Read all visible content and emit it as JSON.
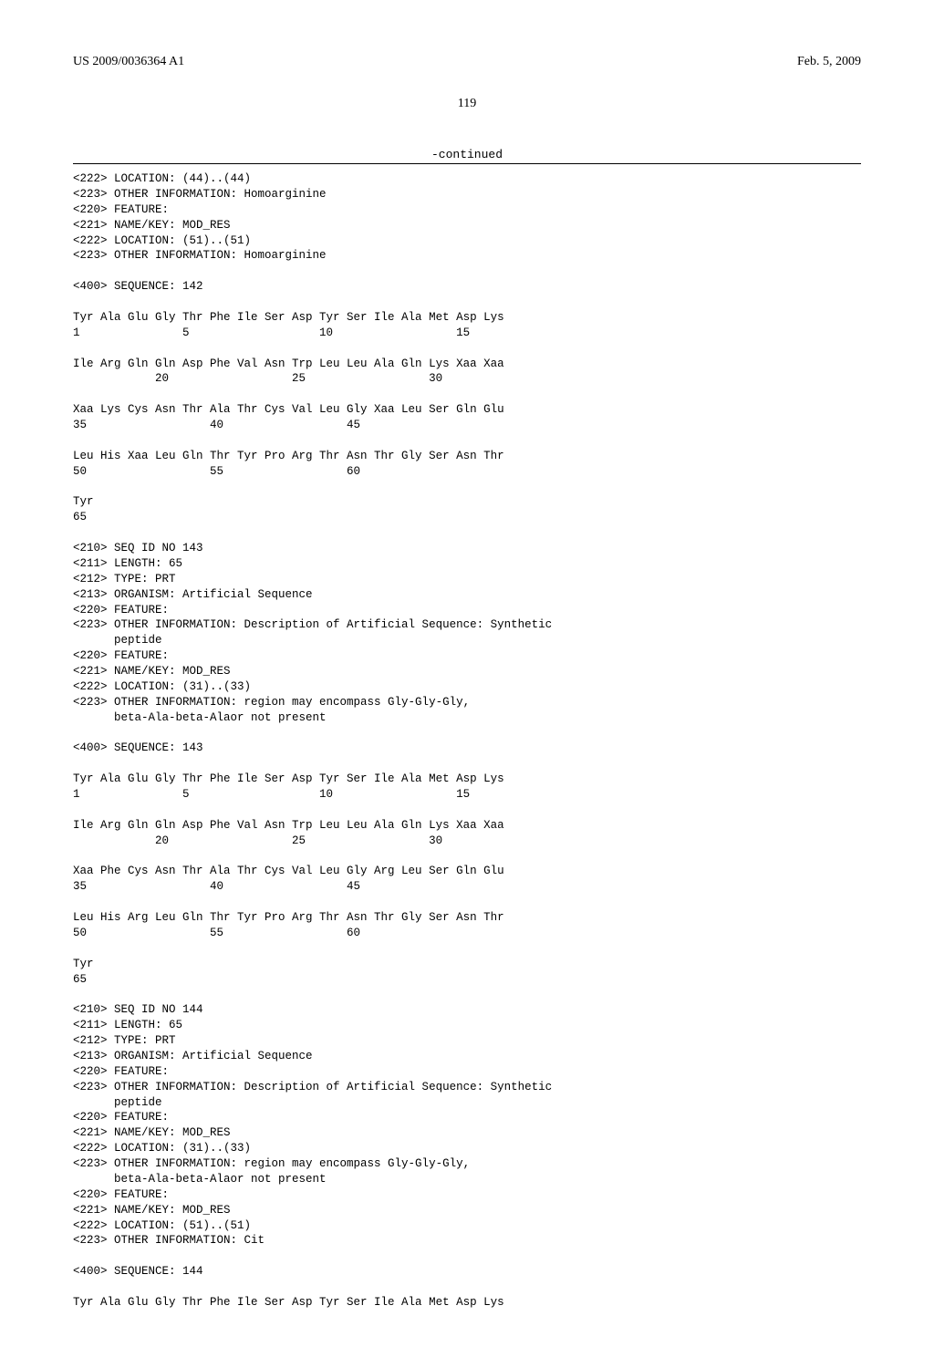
{
  "header": {
    "left": "US 2009/0036364 A1",
    "right": "Feb. 5, 2009"
  },
  "page_number": "119",
  "continued": "-continued",
  "seq142": {
    "meta": "<222> LOCATION: (44)..(44)\n<223> OTHER INFORMATION: Homoarginine\n<220> FEATURE:\n<221> NAME/KEY: MOD_RES\n<222> LOCATION: (51)..(51)\n<223> OTHER INFORMATION: Homoarginine\n\n<400> SEQUENCE: 142\n\nTyr Ala Glu Gly Thr Phe Ile Ser Asp Tyr Ser Ile Ala Met Asp Lys\n1               5                   10                  15\n\nIle Arg Gln Gln Asp Phe Val Asn Trp Leu Leu Ala Gln Lys Xaa Xaa\n            20                  25                  30\n\nXaa Lys Cys Asn Thr Ala Thr Cys Val Leu Gly Xaa Leu Ser Gln Glu\n35                  40                  45\n\nLeu His Xaa Leu Gln Thr Tyr Pro Arg Thr Asn Thr Gly Ser Asn Thr\n50                  55                  60\n\nTyr\n65\n\n"
  },
  "seq143": {
    "meta": "<210> SEQ ID NO 143\n<211> LENGTH: 65\n<212> TYPE: PRT\n<213> ORGANISM: Artificial Sequence\n<220> FEATURE:\n<223> OTHER INFORMATION: Description of Artificial Sequence: Synthetic\n      peptide\n<220> FEATURE:\n<221> NAME/KEY: MOD_RES\n<222> LOCATION: (31)..(33)\n<223> OTHER INFORMATION: region may encompass Gly-Gly-Gly,\n      beta-Ala-beta-Alaor not present\n\n<400> SEQUENCE: 143\n\nTyr Ala Glu Gly Thr Phe Ile Ser Asp Tyr Ser Ile Ala Met Asp Lys\n1               5                   10                  15\n\nIle Arg Gln Gln Asp Phe Val Asn Trp Leu Leu Ala Gln Lys Xaa Xaa\n            20                  25                  30\n\nXaa Phe Cys Asn Thr Ala Thr Cys Val Leu Gly Arg Leu Ser Gln Glu\n35                  40                  45\n\nLeu His Arg Leu Gln Thr Tyr Pro Arg Thr Asn Thr Gly Ser Asn Thr\n50                  55                  60\n\nTyr\n65\n\n"
  },
  "seq144": {
    "meta": "<210> SEQ ID NO 144\n<211> LENGTH: 65\n<212> TYPE: PRT\n<213> ORGANISM: Artificial Sequence\n<220> FEATURE:\n<223> OTHER INFORMATION: Description of Artificial Sequence: Synthetic\n      peptide\n<220> FEATURE:\n<221> NAME/KEY: MOD_RES\n<222> LOCATION: (31)..(33)\n<223> OTHER INFORMATION: region may encompass Gly-Gly-Gly,\n      beta-Ala-beta-Alaor not present\n<220> FEATURE:\n<221> NAME/KEY: MOD_RES\n<222> LOCATION: (51)..(51)\n<223> OTHER INFORMATION: Cit\n\n<400> SEQUENCE: 144\n\nTyr Ala Glu Gly Thr Phe Ile Ser Asp Tyr Ser Ile Ala Met Asp Lys"
  }
}
